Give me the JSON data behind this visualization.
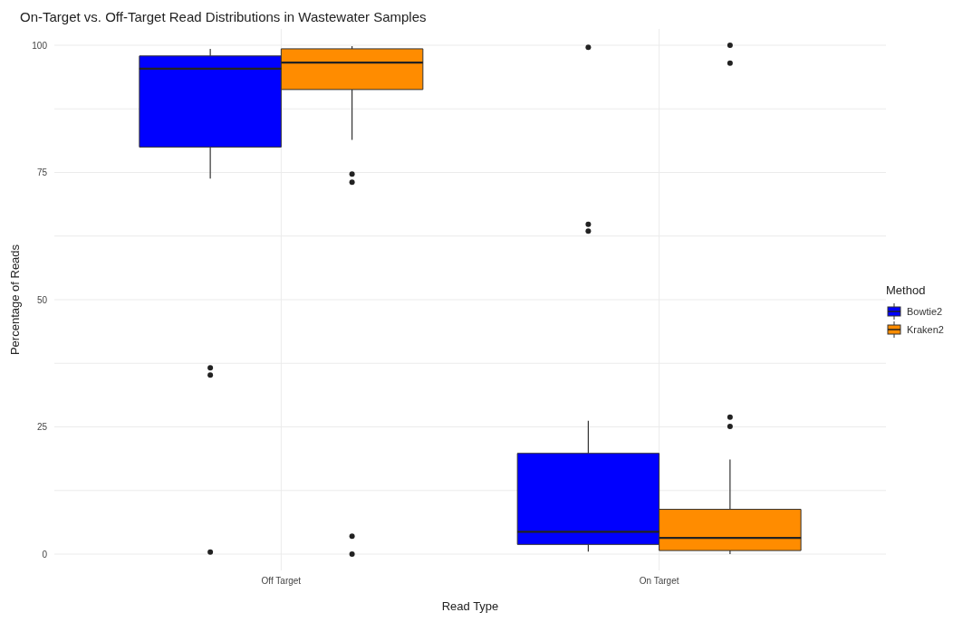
{
  "chart_data": {
    "type": "box",
    "title": "On-Target vs. Off-Target Read Distributions in Wastewater Samples",
    "xlabel": "Read Type",
    "ylabel": "Percentage of Reads",
    "legend_title": "Method",
    "categories": [
      "Off Target",
      "On Target"
    ],
    "ylim": [
      -3.2,
      103.2
    ],
    "yticks": [
      0,
      {
        "value": 12.5,
        "label": null
      },
      25,
      {
        "value": 37.5,
        "label": null
      },
      50,
      {
        "value": 62.5,
        "label": null
      },
      75,
      {
        "value": 87.5,
        "label": null
      },
      100
    ],
    "grid": true,
    "legend": "right",
    "series": [
      {
        "name": "Bowtie2",
        "color": "#0000ff",
        "boxes": [
          {
            "low": 73.8,
            "q1": 80.0,
            "median": 95.4,
            "q3": 97.9,
            "high": 99.3,
            "outliers": [
              36.6,
              35.2,
              0.4
            ]
          },
          {
            "low": 0.5,
            "q1": 1.9,
            "median": 4.4,
            "q3": 19.8,
            "high": 26.2,
            "outliers": [
              99.6,
              64.8,
              63.5
            ]
          }
        ]
      },
      {
        "name": "Kraken2",
        "color": "#ff8c00",
        "boxes": [
          {
            "low": 81.4,
            "q1": 91.3,
            "median": 96.6,
            "q3": 99.3,
            "high": 99.8,
            "outliers": [
              74.7,
              73.1,
              3.5,
              0
            ]
          },
          {
            "low": 0,
            "q1": 0.7,
            "median": 3.2,
            "q3": 8.8,
            "high": 18.6,
            "outliers": [
              100,
              96.5,
              26.9,
              25.1
            ]
          }
        ]
      }
    ]
  }
}
